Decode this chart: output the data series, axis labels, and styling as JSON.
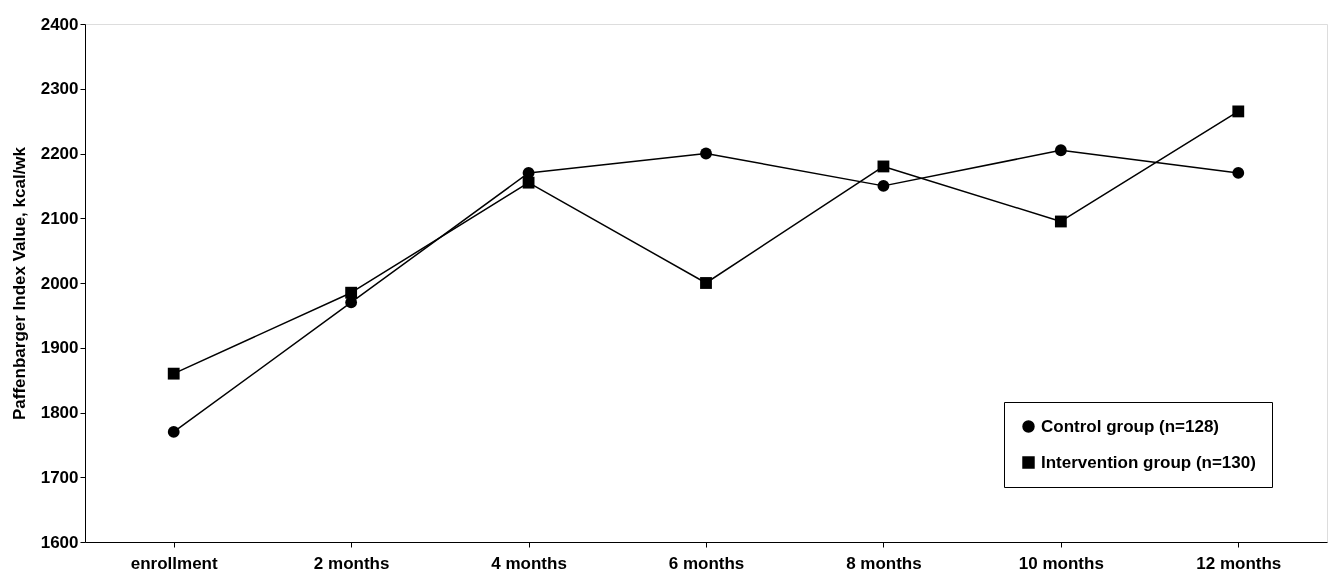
{
  "chart_data": {
    "type": "line",
    "ylabel": "Paffenbarger Index Value, kcal/wk",
    "categories": [
      "enrollment",
      "2 months",
      "4 months",
      "6 months",
      "8 months",
      "10 months",
      "12 months"
    ],
    "series": [
      {
        "name": "Control group (n=128)",
        "color": "#000000",
        "marker": "circle",
        "values": [
          1770,
          1970,
          2170,
          2200,
          2150,
          2205,
          2170
        ]
      },
      {
        "name": "Intervention group (n=130)",
        "color": "#000000",
        "marker": "square",
        "values": [
          1860,
          1985,
          2155,
          2000,
          2180,
          2095,
          2265
        ]
      }
    ],
    "ylim": [
      1600,
      2400
    ],
    "yticks": [
      1600,
      1700,
      1800,
      1900,
      2000,
      2100,
      2200,
      2300,
      2400
    ],
    "grid": false,
    "legend": "bottom right",
    "line_style": "solid"
  }
}
